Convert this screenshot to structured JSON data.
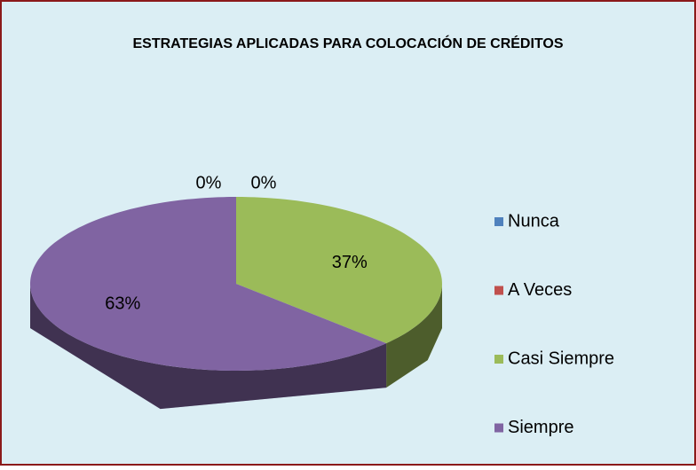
{
  "chart_data": {
    "type": "pie3d",
    "title": "ESTRATEGIAS APLICADAS PARA COLOCACIÓN DE CRÉDITOS",
    "categories": [
      "Nunca",
      "A Veces",
      "Casi Siempre",
      "Siempre"
    ],
    "values": [
      0,
      0,
      37,
      63
    ],
    "value_labels": [
      "0%",
      "0%",
      "37%",
      "63%"
    ],
    "colors": [
      "#4f81bd",
      "#c0504d",
      "#9bbb59",
      "#8064a2"
    ],
    "legend": "right"
  }
}
